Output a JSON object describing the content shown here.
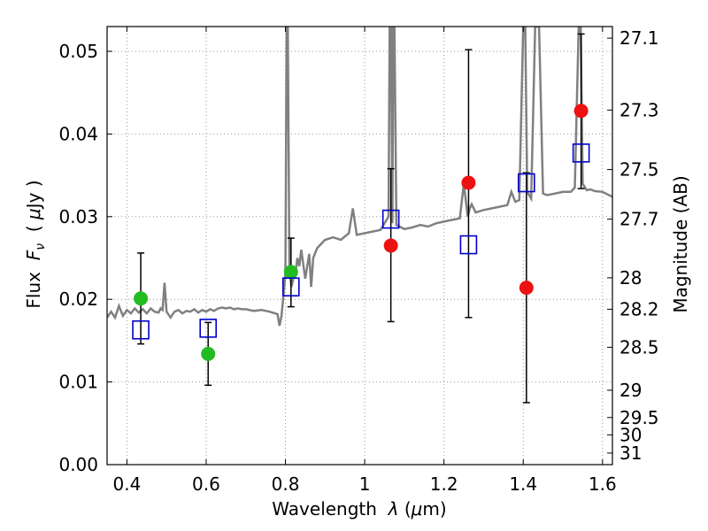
{
  "chart_data": {
    "type": "scatter",
    "xlabel": "Wavelength  λ (μm)",
    "ylabel": "Flux  F_ν  ( μJy )",
    "ylabel_parts": {
      "prefix": "Flux  ",
      "F": "F",
      "sub": "ν",
      "mid": "  ( ",
      "mu": "μ",
      "unit": "Jy )"
    },
    "xlabel_parts": {
      "prefix": "Wavelength  ",
      "lambda": "λ",
      "open": " (",
      "mu": "μ",
      "unit": "m)"
    },
    "y2label": "Magnitude (AB)",
    "xlim": [
      0.35,
      1.625
    ],
    "ylim": [
      0.0,
      0.053
    ],
    "grid": true,
    "x_ticks": [
      0.4,
      0.6,
      0.8,
      1.0,
      1.2,
      1.4,
      1.6
    ],
    "x_tick_labels": [
      "0.4",
      "0.6",
      "0.8",
      "1",
      "1.2",
      "1.4",
      "1.6"
    ],
    "y_ticks": [
      0.0,
      0.01,
      0.02,
      0.03,
      0.04,
      0.05
    ],
    "y_tick_labels": [
      "0.00",
      "0.01",
      "0.02",
      "0.03",
      "0.04",
      "0.05"
    ],
    "y2_ticks": [
      {
        "label": "27.1",
        "flux": 0.0516
      },
      {
        "label": "27.3",
        "flux": 0.0429
      },
      {
        "label": "27.5",
        "flux": 0.0357
      },
      {
        "label": "27.7",
        "flux": 0.0297
      },
      {
        "label": "28",
        "flux": 0.0226
      },
      {
        "label": "28.2",
        "flux": 0.0188
      },
      {
        "label": "28.5",
        "flux": 0.0142
      },
      {
        "label": "29",
        "flux": 0.009
      },
      {
        "label": "29.5",
        "flux": 0.0057
      },
      {
        "label": "30",
        "flux": 0.0036
      },
      {
        "label": "31",
        "flux": 0.0014
      }
    ],
    "colors": {
      "green": "#22bb22",
      "red": "#ee1111",
      "blue_square": "#0000cc",
      "spectrum": "#808080",
      "errorbar": "#000000",
      "grid": "#999999"
    },
    "spectrum": {
      "x": [
        0.35,
        0.36,
        0.37,
        0.38,
        0.39,
        0.4,
        0.41,
        0.42,
        0.43,
        0.44,
        0.45,
        0.46,
        0.47,
        0.48,
        0.485,
        0.49,
        0.495,
        0.5,
        0.51,
        0.52,
        0.53,
        0.54,
        0.55,
        0.56,
        0.57,
        0.58,
        0.59,
        0.6,
        0.61,
        0.62,
        0.63,
        0.64,
        0.65,
        0.66,
        0.67,
        0.68,
        0.69,
        0.7,
        0.72,
        0.74,
        0.76,
        0.78,
        0.785,
        0.79,
        0.8,
        0.803,
        0.806,
        0.81,
        0.815,
        0.82,
        0.825,
        0.83,
        0.835,
        0.84,
        0.85,
        0.86,
        0.865,
        0.87,
        0.88,
        0.9,
        0.92,
        0.94,
        0.96,
        0.97,
        0.98,
        1.0,
        1.02,
        1.04,
        1.06,
        1.063,
        1.066,
        1.07,
        1.072,
        1.075,
        1.08,
        1.1,
        1.12,
        1.14,
        1.16,
        1.18,
        1.2,
        1.22,
        1.24,
        1.25,
        1.26,
        1.265,
        1.27,
        1.28,
        1.3,
        1.32,
        1.34,
        1.36,
        1.37,
        1.38,
        1.39,
        1.4,
        1.405,
        1.41,
        1.42,
        1.43,
        1.44,
        1.45,
        1.46,
        1.48,
        1.5,
        1.52,
        1.53,
        1.54,
        1.545,
        1.55,
        1.56,
        1.57,
        1.58,
        1.6,
        1.625
      ],
      "y": [
        0.0178,
        0.0185,
        0.0178,
        0.0192,
        0.018,
        0.0187,
        0.0183,
        0.0189,
        0.0184,
        0.0188,
        0.0183,
        0.0189,
        0.0185,
        0.0184,
        0.0189,
        0.0187,
        0.022,
        0.0185,
        0.0178,
        0.0185,
        0.0187,
        0.0183,
        0.0186,
        0.0185,
        0.0188,
        0.0184,
        0.0187,
        0.0185,
        0.0188,
        0.0186,
        0.0189,
        0.019,
        0.0189,
        0.019,
        0.0188,
        0.0189,
        0.0188,
        0.0188,
        0.0186,
        0.0187,
        0.0185,
        0.0182,
        0.0168,
        0.018,
        0.023,
        0.053,
        0.053,
        0.024,
        0.0215,
        0.0225,
        0.023,
        0.025,
        0.024,
        0.026,
        0.0225,
        0.0255,
        0.0215,
        0.025,
        0.0262,
        0.0272,
        0.0275,
        0.0272,
        0.028,
        0.031,
        0.0278,
        0.028,
        0.0282,
        0.0284,
        0.03,
        0.053,
        0.053,
        0.0292,
        0.053,
        0.053,
        0.029,
        0.0285,
        0.0287,
        0.029,
        0.0288,
        0.0292,
        0.0294,
        0.0296,
        0.0298,
        0.034,
        0.03,
        0.031,
        0.0315,
        0.0305,
        0.0308,
        0.031,
        0.0312,
        0.0314,
        0.033,
        0.0318,
        0.032,
        0.053,
        0.053,
        0.033,
        0.0322,
        0.053,
        0.053,
        0.0328,
        0.0326,
        0.0328,
        0.033,
        0.033,
        0.0335,
        0.053,
        0.053,
        0.034,
        0.0332,
        0.0333,
        0.0331,
        0.033,
        0.0324
      ]
    },
    "series": [
      {
        "marker": "circle",
        "color": "green",
        "points": [
          {
            "x": 0.435,
            "y": 0.0201
          },
          {
            "x": 0.605,
            "y": 0.0134
          },
          {
            "x": 0.814,
            "y": 0.0233
          }
        ]
      },
      {
        "marker": "circle",
        "color": "red",
        "points": [
          {
            "x": 1.066,
            "y": 0.0265
          },
          {
            "x": 1.262,
            "y": 0.0341
          },
          {
            "x": 1.408,
            "y": 0.0214
          },
          {
            "x": 1.546,
            "y": 0.0428
          }
        ]
      },
      {
        "marker": "square",
        "color": "blue_square",
        "points": [
          {
            "x": 0.435,
            "y": 0.0163,
            "err_lo": 0.0146,
            "err_hi": 0.0256
          },
          {
            "x": 0.605,
            "y": 0.0165,
            "err_lo": 0.0096,
            "err_hi": 0.0172
          },
          {
            "x": 0.814,
            "y": 0.0215,
            "err_lo": 0.0191,
            "err_hi": 0.0274
          },
          {
            "x": 1.066,
            "y": 0.0297,
            "err_lo": 0.0173,
            "err_hi": 0.0358
          },
          {
            "x": 1.262,
            "y": 0.0266,
            "err_lo": 0.0178,
            "err_hi": 0.0502
          },
          {
            "x": 1.408,
            "y": 0.0341,
            "err_lo": 0.0075,
            "err_hi": 0.0353
          },
          {
            "x": 1.546,
            "y": 0.0377,
            "err_lo": 0.0334,
            "err_hi": 0.0521
          }
        ]
      }
    ]
  }
}
